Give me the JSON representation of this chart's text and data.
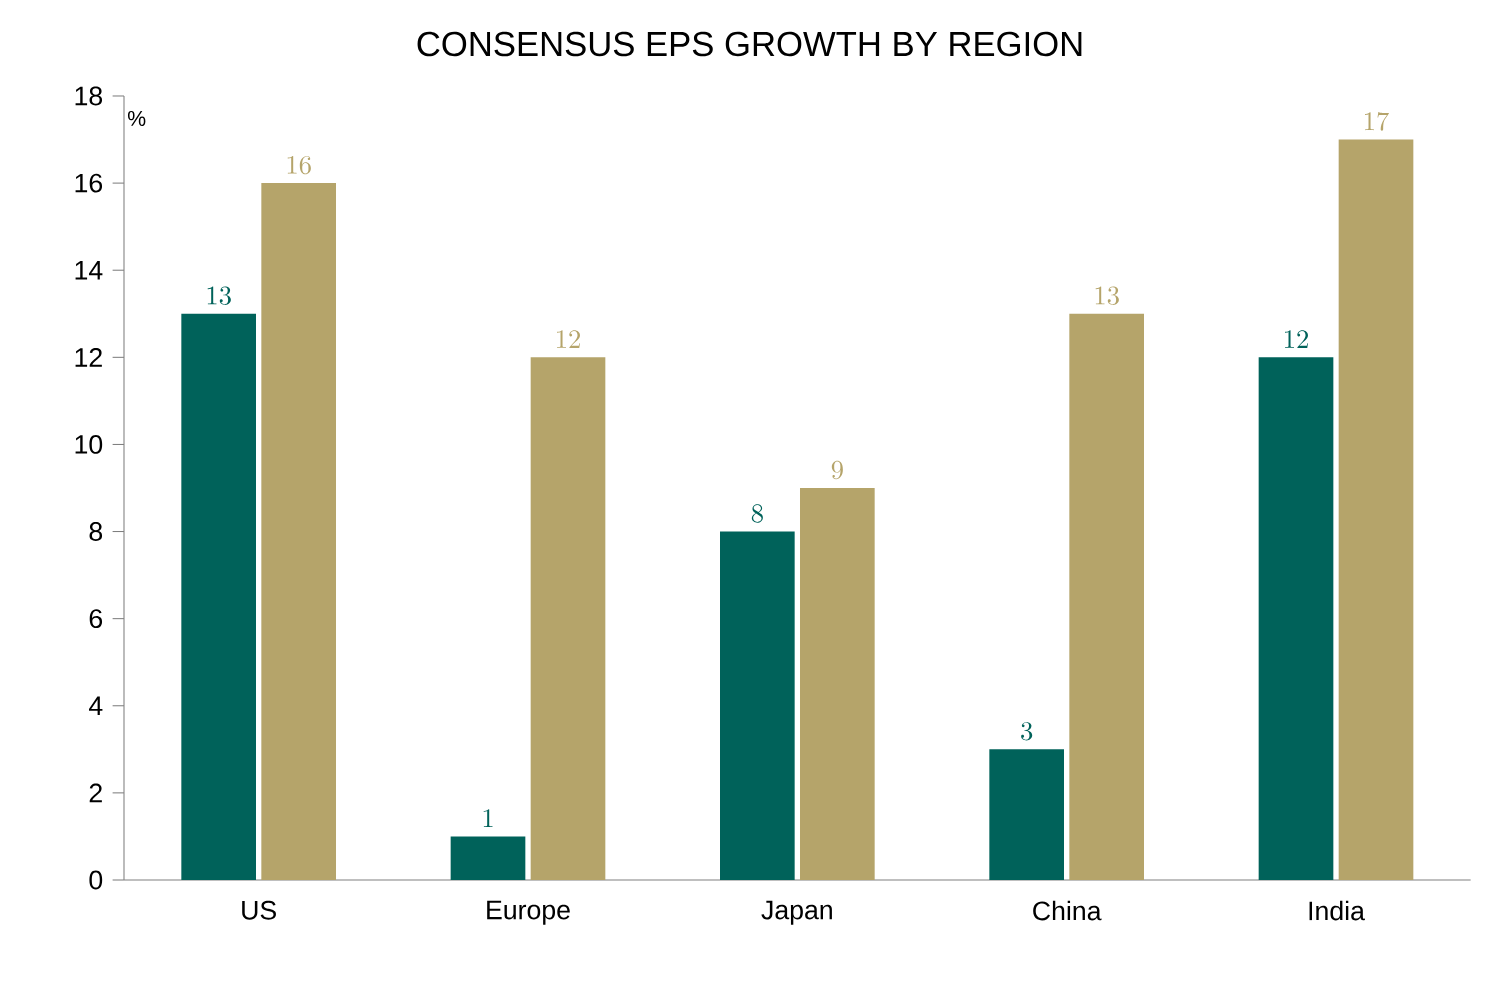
{
  "chart_data": {
    "type": "bar",
    "title": "CONSENSUS EPS GROWTH BY REGION",
    "ylabel": "%",
    "categories": [
      "US",
      "Europe",
      "Japan",
      "China",
      "India"
    ],
    "series": [
      {
        "color": "#00625a",
        "values": [
          13,
          1,
          8,
          3,
          12
        ]
      },
      {
        "color": "#b5a46a",
        "values": [
          16,
          12,
          9,
          13,
          17
        ]
      }
    ],
    "ylim": [
      0,
      18
    ],
    "yticks": [
      0,
      2,
      4,
      6,
      8,
      10,
      12,
      14,
      16,
      18
    ],
    "data_labels": true
  }
}
